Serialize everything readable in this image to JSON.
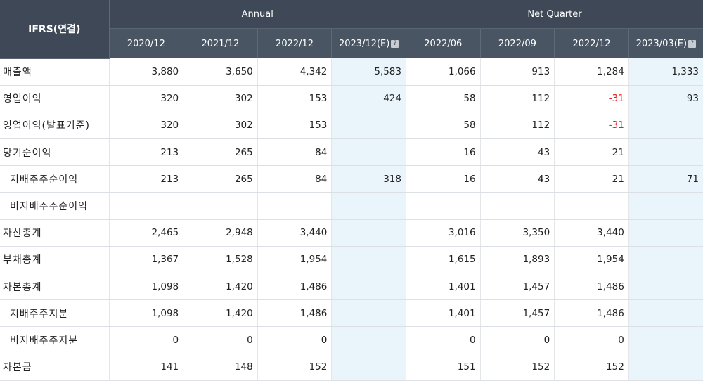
{
  "header": {
    "corner": "IFRS(연결)",
    "groups": [
      "Annual",
      "Net Quarter"
    ],
    "columns": [
      "2020/12",
      "2021/12",
      "2022/12",
      "2023/12(E)",
      "2022/06",
      "2022/09",
      "2022/12",
      "2023/03(E)"
    ],
    "estimate_marker": "?"
  },
  "rows": [
    {
      "label": "매출액",
      "indent": false,
      "values": [
        "3,880",
        "3,650",
        "4,342",
        "5,583",
        "1,066",
        "913",
        "1,284",
        "1,333"
      ]
    },
    {
      "label": "영업이익",
      "indent": false,
      "values": [
        "320",
        "302",
        "153",
        "424",
        "58",
        "112",
        "-31",
        "93"
      ]
    },
    {
      "label": "영업이익(발표기준)",
      "indent": false,
      "values": [
        "320",
        "302",
        "153",
        "",
        "58",
        "112",
        "-31",
        ""
      ]
    },
    {
      "label": "당기순이익",
      "indent": false,
      "values": [
        "213",
        "265",
        "84",
        "",
        "16",
        "43",
        "21",
        ""
      ]
    },
    {
      "label": "지배주주순이익",
      "indent": true,
      "values": [
        "213",
        "265",
        "84",
        "318",
        "16",
        "43",
        "21",
        "71"
      ]
    },
    {
      "label": "비지배주주순이익",
      "indent": true,
      "values": [
        "",
        "",
        "",
        "",
        "",
        "",
        "",
        ""
      ]
    },
    {
      "label": "자산총계",
      "indent": false,
      "values": [
        "2,465",
        "2,948",
        "3,440",
        "",
        "3,016",
        "3,350",
        "3,440",
        ""
      ]
    },
    {
      "label": "부채총계",
      "indent": false,
      "values": [
        "1,367",
        "1,528",
        "1,954",
        "",
        "1,615",
        "1,893",
        "1,954",
        ""
      ]
    },
    {
      "label": "자본총계",
      "indent": false,
      "values": [
        "1,098",
        "1,420",
        "1,486",
        "",
        "1,401",
        "1,457",
        "1,486",
        ""
      ]
    },
    {
      "label": "지배주주지분",
      "indent": true,
      "values": [
        "1,098",
        "1,420",
        "1,486",
        "",
        "1,401",
        "1,457",
        "1,486",
        ""
      ]
    },
    {
      "label": "비지배주주지분",
      "indent": true,
      "values": [
        "0",
        "0",
        "0",
        "",
        "0",
        "0",
        "0",
        ""
      ]
    },
    {
      "label": "자본금",
      "indent": false,
      "values": [
        "141",
        "148",
        "152",
        "",
        "151",
        "152",
        "152",
        ""
      ]
    }
  ],
  "colors": {
    "header_bg": "#3e4856",
    "estimate_bg": "#e9f5fb",
    "negative": "#e02020"
  }
}
